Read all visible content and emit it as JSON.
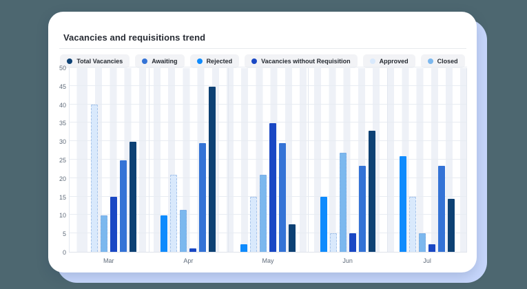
{
  "card": {
    "title": "Vacancies and requisitions trend"
  },
  "legend": {
    "items": [
      {
        "label": "Total Vacancies",
        "color": "#0d4174"
      },
      {
        "label": "Awaiting",
        "color": "#3473d6"
      },
      {
        "label": "Rejected",
        "color": "#0f8bfd"
      },
      {
        "label": "Vacancies without Requisition",
        "color": "#1a48c4"
      },
      {
        "label": "Approved",
        "color": "#d9e9fc"
      },
      {
        "label": "Closed",
        "color": "#7cb8ee"
      }
    ]
  },
  "chart_data": {
    "type": "bar",
    "title": "Vacancies and requisitions trend",
    "categories": [
      "Mar",
      "Apr",
      "May",
      "Jun",
      "Jul"
    ],
    "series": [
      {
        "name": "Rejected",
        "color": "#0f8bfd",
        "values": [
          0,
          10,
          2,
          15,
          26
        ]
      },
      {
        "name": "Approved",
        "color": "#d9e9fc",
        "values": [
          40,
          21,
          15,
          5,
          15
        ],
        "dashed_border": true
      },
      {
        "name": "Closed",
        "color": "#7cb8ee",
        "values": [
          10,
          11.5,
          21,
          27,
          5
        ],
        "dashed_border": true
      },
      {
        "name": "Vacancies without Requisition",
        "color": "#1a48c4",
        "values": [
          15,
          1,
          35,
          5,
          2
        ]
      },
      {
        "name": "Awaiting",
        "color": "#3473d6",
        "values": [
          25,
          29.5,
          29.5,
          23.5,
          23.5
        ]
      },
      {
        "name": "Total Vacancies",
        "color": "#0d4174",
        "values": [
          30,
          45,
          7.5,
          33,
          14.5
        ]
      }
    ],
    "xlabel": "",
    "ylabel": "",
    "ylim": [
      0,
      50
    ],
    "yticks": [
      0,
      5,
      10,
      15,
      20,
      25,
      30,
      35,
      40,
      45,
      50
    ],
    "grid": true,
    "legend_position": "top-center",
    "background_stripes": true
  },
  "colors": {
    "page_background": "#4d6770",
    "backdrop": "#c7d7fc",
    "card_background": "#ffffff",
    "gridline": "#e8ecf2",
    "stripe": "#eef1f7",
    "axis_text": "#5f6b7a",
    "title_text": "#272b33"
  }
}
